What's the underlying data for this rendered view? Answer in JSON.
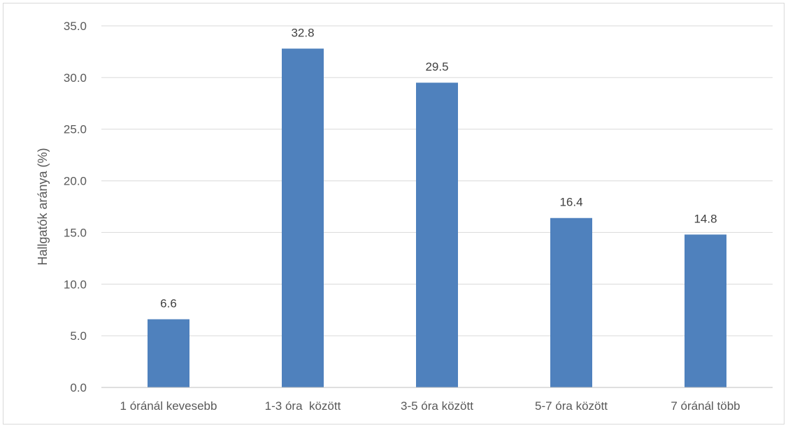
{
  "chart_data": {
    "type": "bar",
    "title": "",
    "xlabel": "",
    "ylabel": "Hallgatók aránya (%)",
    "categories": [
      "1 óránál kevesebb",
      "1-3 óra  között",
      "3-5 óra között",
      "5-7 óra között",
      "7 óránál több"
    ],
    "values": [
      6.6,
      32.8,
      29.5,
      16.4,
      14.8
    ],
    "value_labels": [
      "6.6",
      "32.8",
      "29.5",
      "16.4",
      "14.8"
    ],
    "ylim": [
      0,
      35
    ],
    "yticks": [
      0,
      5,
      10,
      15,
      20,
      25,
      30,
      35
    ],
    "ytick_labels": [
      "0.0",
      "5.0",
      "10.0",
      "15.0",
      "20.0",
      "25.0",
      "30.0",
      "35.0"
    ],
    "grid": true,
    "legend": "none",
    "colors": {
      "bar": "#4f81bd",
      "grid": "#d9d9d9",
      "axis": "#bfbfbf"
    }
  }
}
